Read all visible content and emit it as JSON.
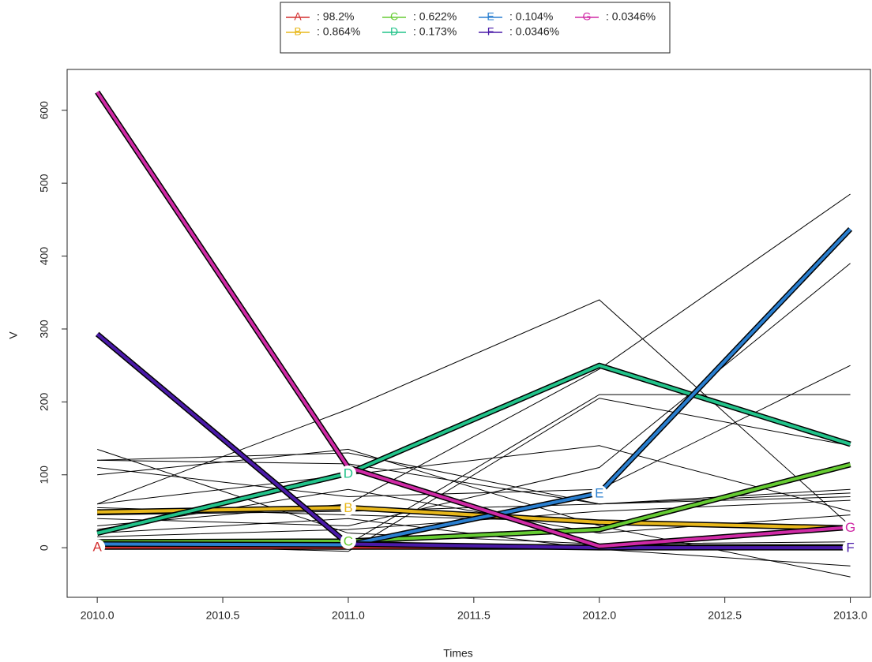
{
  "chart_data": {
    "type": "line",
    "x_label": "Times",
    "y_label": "V",
    "x": [
      2010,
      2011,
      2012,
      2013
    ],
    "xlim": [
      2009.88,
      2013.08
    ],
    "ylim": [
      -68,
      656
    ],
    "xticks": [
      {
        "value": 2010,
        "label": "2010.0"
      },
      {
        "value": 2010.5,
        "label": "2010.5"
      },
      {
        "value": 2011,
        "label": "2011.0"
      },
      {
        "value": 2011.5,
        "label": "2011.5"
      },
      {
        "value": 2012,
        "label": "2012.0"
      },
      {
        "value": 2012.5,
        "label": "2012.5"
      },
      {
        "value": 2013,
        "label": "2013.0"
      }
    ],
    "yticks": [
      0,
      100,
      200,
      300,
      400,
      500,
      600
    ],
    "trajectory_color": "#000000",
    "trajectories": [
      [
        135,
        20,
        5,
        8
      ],
      [
        120,
        130,
        60,
        70
      ],
      [
        60,
        190,
        340,
        30
      ],
      [
        30,
        60,
        245,
        485
      ],
      [
        10,
        5,
        210,
        210
      ],
      [
        60,
        100,
        140,
        50
      ],
      [
        20,
        40,
        -2,
        -25
      ],
      [
        110,
        70,
        80,
        250
      ],
      [
        40,
        30,
        110,
        390
      ],
      [
        120,
        115,
        60,
        80
      ],
      [
        5,
        -5,
        205,
        140
      ],
      [
        45,
        50,
        60,
        75
      ],
      [
        25,
        80,
        20,
        45
      ],
      [
        100,
        135,
        30,
        -40
      ],
      [
        15,
        25,
        50,
        65
      ],
      [
        55,
        45,
        35,
        30
      ]
    ],
    "series": [
      {
        "name": "A",
        "legend_text": ": 98.2%",
        "color": "#d32f2f",
        "values": [
          1,
          1,
          1,
          1
        ],
        "label_at": 2010
      },
      {
        "name": "B",
        "legend_text": ": 0.864%",
        "color": "#e8b81c",
        "values": [
          49,
          55,
          35,
          27
        ],
        "label_at": 2011
      },
      {
        "name": "C",
        "legend_text": ": 0.622%",
        "color": "#66cc33",
        "values": [
          8,
          9,
          25,
          114
        ],
        "label_at": 2011
      },
      {
        "name": "D",
        "legend_text": ": 0.173%",
        "color": "#22c38a",
        "values": [
          20,
          102,
          250,
          142
        ],
        "label_at": 2011
      },
      {
        "name": "E",
        "legend_text": ": 0.104%",
        "color": "#2a7fd0",
        "values": [
          5,
          4,
          75,
          437
        ],
        "label_at": 2012
      },
      {
        "name": "F",
        "legend_text": ": 0.0346%",
        "color": "#4a1aa8",
        "values": [
          293,
          5,
          0,
          0
        ],
        "label_at": 2013
      },
      {
        "name": "G",
        "legend_text": ": 0.0346%",
        "color": "#d02aa6",
        "values": [
          625,
          110,
          2,
          28
        ],
        "label_at": 2013
      }
    ]
  }
}
